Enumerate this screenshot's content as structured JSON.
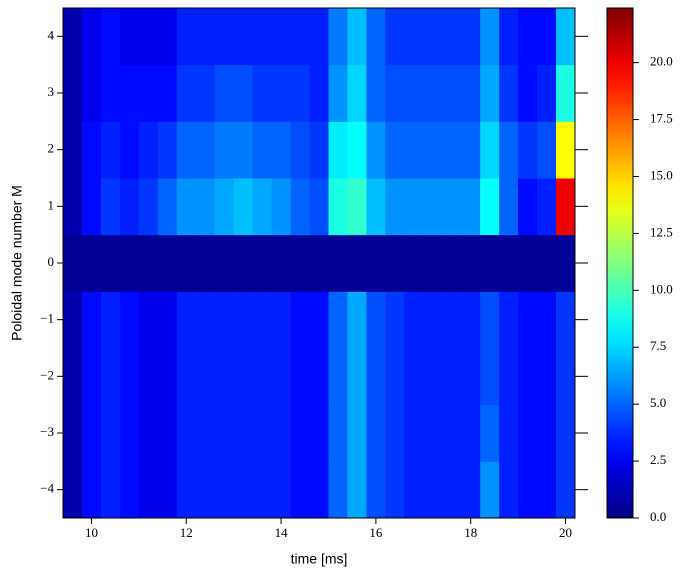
{
  "chart_data": {
    "type": "heatmap",
    "xlabel": "time [ms]",
    "ylabel": "Poloidal mode number M",
    "x": [
      9.4,
      9.8,
      10.2,
      10.6,
      11.0,
      11.4,
      11.8,
      12.2,
      12.6,
      13.0,
      13.4,
      13.8,
      14.2,
      14.6,
      15.0,
      15.4,
      15.8,
      16.2,
      16.6,
      17.0,
      17.4,
      17.8,
      18.2,
      18.6,
      19.0,
      19.4,
      19.8,
      20.2
    ],
    "y": [
      -4,
      -3,
      -2,
      -1,
      0,
      1,
      2,
      3,
      4
    ],
    "z": [
      [
        1,
        3,
        3.5,
        3,
        2.5,
        2.5,
        3.5,
        3.5,
        3.5,
        3.5,
        3.5,
        3.5,
        3,
        3,
        5,
        6.5,
        4.5,
        4,
        3.5,
        3.5,
        3.5,
        3.5,
        6,
        3.5,
        3,
        3,
        4
      ],
      [
        1,
        3,
        3.5,
        3,
        2.5,
        2.5,
        3.5,
        3.5,
        3.5,
        3.5,
        3.5,
        3.5,
        3,
        3,
        5,
        6.5,
        4.5,
        4,
        3.5,
        3.5,
        3.5,
        3.5,
        5,
        3.5,
        3,
        3,
        4
      ],
      [
        1,
        3,
        3.5,
        3,
        2.5,
        2.5,
        3.5,
        3.5,
        3.5,
        3.5,
        3.5,
        3.5,
        3,
        3,
        5,
        6.5,
        4.5,
        4,
        3.5,
        3.5,
        3.5,
        3.5,
        4.5,
        3.5,
        3,
        3,
        4
      ],
      [
        1,
        3,
        3.5,
        3,
        2.5,
        2.5,
        3.5,
        3.5,
        3.5,
        3.5,
        3.5,
        3.5,
        3,
        3,
        5,
        6.5,
        4.5,
        4,
        3.5,
        3.5,
        3.5,
        3.5,
        4.5,
        3.5,
        3,
        3,
        4
      ],
      [
        0.5,
        0.5,
        0.5,
        0.5,
        0.5,
        0.5,
        0.5,
        0.5,
        0.5,
        0.5,
        0.5,
        0.5,
        0.5,
        0.5,
        0.5,
        0.5,
        0.5,
        0.5,
        0.5,
        0.5,
        0.5,
        0.5,
        0.5,
        0.5,
        0.5,
        0.5,
        0.5
      ],
      [
        1,
        3,
        4,
        3.5,
        4,
        5,
        6,
        6,
        6.5,
        7,
        6.5,
        6,
        5,
        4.5,
        9,
        9.5,
        7,
        6,
        6,
        6,
        6,
        6,
        8.5,
        5,
        3,
        3.5,
        20
      ],
      [
        1,
        3,
        3.5,
        3,
        3.5,
        4,
        5,
        5,
        5.5,
        5.5,
        5,
        5,
        4.5,
        4,
        8,
        8.5,
        6,
        5,
        5,
        5,
        5,
        5,
        7.5,
        5,
        4,
        4.5,
        14
      ],
      [
        1,
        2.5,
        3,
        3,
        3,
        3,
        4,
        4,
        4.5,
        4.5,
        4,
        4,
        4,
        3.5,
        6,
        7.5,
        5,
        4.5,
        4.5,
        4.5,
        4.5,
        4.5,
        6.5,
        4,
        3,
        3.5,
        9
      ],
      [
        1,
        2.5,
        3,
        2.5,
        2.5,
        2.5,
        3.5,
        3.5,
        3.5,
        3.5,
        3.5,
        3.5,
        3.5,
        3.5,
        5.5,
        7,
        5,
        4,
        4,
        4,
        4,
        4,
        6,
        3.5,
        3,
        3,
        7
      ]
    ],
    "colormap": "jet",
    "xlim": [
      9.4,
      20.2
    ],
    "ylim": [
      -4.5,
      4.5
    ],
    "clim": [
      0,
      22.4
    ],
    "xticks": [
      10,
      12,
      14,
      16,
      18,
      20
    ],
    "yticks": [
      {
        "value": -4,
        "label": "−4"
      },
      {
        "value": -3,
        "label": "−3"
      },
      {
        "value": -2,
        "label": "−2"
      },
      {
        "value": -1,
        "label": "−1"
      },
      0,
      1,
      2,
      3,
      4
    ],
    "cticks": [
      {
        "value": 0,
        "label": "0.0"
      },
      2.5,
      {
        "value": 5,
        "label": "5.0"
      },
      7.5,
      {
        "value": 10,
        "label": "10.0"
      },
      12.5,
      {
        "value": 15,
        "label": "15.0"
      },
      17.5,
      {
        "value": 20,
        "label": "20.0"
      }
    ]
  }
}
